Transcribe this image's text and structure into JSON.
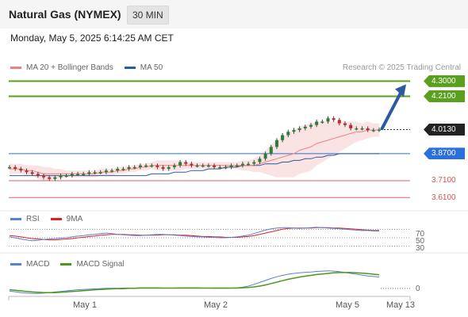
{
  "header": {
    "title": "Natural Gas (NYMEX)",
    "interval": "30 MIN",
    "datetime": "Monday, May 5, 2025 6:14:25 AM CET"
  },
  "legend_main": {
    "ma20_label": "MA 20 + Bollinger Bands",
    "ma50_label": "MA 50",
    "copyright": "Research © 2025 Trading Central"
  },
  "legend_rsi": {
    "rsi_label": "RSI",
    "ma_label": "9MA"
  },
  "legend_macd": {
    "macd_label": "MACD",
    "signal_label": "MACD Signal"
  },
  "colors": {
    "ma20": "#f08080",
    "ma50": "#2a5aa0",
    "resistance": "#5aa01e",
    "pivot": "#2a6fe0",
    "support": "#e06060",
    "current": "#222222",
    "arrow": "#2a5aa0",
    "rsi": "#5b7fd6",
    "rsi_ma": "#e02020",
    "macd": "#5b7fd6",
    "macd_signal": "#4a9a1a"
  },
  "levels": [
    {
      "name": "resistance-2",
      "value": 4.3,
      "label": "4.3000",
      "kind": "resistance"
    },
    {
      "name": "resistance-1",
      "value": 4.21,
      "label": "4.2100",
      "kind": "resistance"
    },
    {
      "name": "current-price",
      "value": 4.013,
      "label": "4.0130",
      "kind": "current"
    },
    {
      "name": "pivot",
      "value": 3.87,
      "label": "3.8700",
      "kind": "pivot"
    },
    {
      "name": "support-1",
      "value": 3.71,
      "label": "3.7100",
      "kind": "support"
    },
    {
      "name": "support-2",
      "value": 3.61,
      "label": "3.6100",
      "kind": "support"
    }
  ],
  "chart_data": {
    "type": "line",
    "title": "Natural Gas (NYMEX)",
    "interval": "30 MIN",
    "x_ticks": [
      "May 1",
      "May 2",
      "May 5",
      "May 13"
    ],
    "price_ylim": [
      3.55,
      4.33
    ],
    "price_close": [
      3.79,
      3.78,
      3.77,
      3.76,
      3.75,
      3.74,
      3.73,
      3.72,
      3.73,
      3.74,
      3.74,
      3.75,
      3.75,
      3.75,
      3.76,
      3.76,
      3.76,
      3.77,
      3.77,
      3.78,
      3.78,
      3.79,
      3.79,
      3.8,
      3.8,
      3.8,
      3.79,
      3.78,
      3.79,
      3.8,
      3.82,
      3.81,
      3.8,
      3.8,
      3.8,
      3.8,
      3.79,
      3.79,
      3.79,
      3.8,
      3.8,
      3.81,
      3.81,
      3.82,
      3.84,
      3.87,
      3.91,
      3.95,
      3.98,
      4.0,
      4.01,
      4.02,
      4.03,
      4.04,
      4.06,
      4.06,
      4.08,
      4.07,
      4.05,
      4.04,
      4.02,
      4.02,
      4.02,
      4.01,
      4.01,
      4.013
    ],
    "ma20": [
      3.78,
      3.78,
      3.78,
      3.77,
      3.77,
      3.76,
      3.75,
      3.75,
      3.75,
      3.75,
      3.75,
      3.75,
      3.75,
      3.75,
      3.75,
      3.75,
      3.76,
      3.76,
      3.76,
      3.77,
      3.77,
      3.78,
      3.78,
      3.79,
      3.79,
      3.8,
      3.8,
      3.8,
      3.8,
      3.8,
      3.8,
      3.8,
      3.8,
      3.8,
      3.8,
      3.8,
      3.8,
      3.8,
      3.8,
      3.8,
      3.8,
      3.8,
      3.8,
      3.8,
      3.81,
      3.82,
      3.83,
      3.84,
      3.85,
      3.86,
      3.87,
      3.89,
      3.9,
      3.91,
      3.93,
      3.94,
      3.95,
      3.96,
      3.97,
      3.98,
      3.99,
      4.0,
      4.0,
      4.01,
      4.01,
      4.01
    ],
    "bb_width": [
      0.03,
      0.03,
      0.03,
      0.03,
      0.03,
      0.04,
      0.04,
      0.04,
      0.03,
      0.03,
      0.02,
      0.02,
      0.02,
      0.02,
      0.02,
      0.02,
      0.02,
      0.02,
      0.02,
      0.02,
      0.02,
      0.02,
      0.02,
      0.02,
      0.02,
      0.02,
      0.03,
      0.03,
      0.03,
      0.03,
      0.03,
      0.02,
      0.02,
      0.02,
      0.02,
      0.02,
      0.02,
      0.02,
      0.02,
      0.02,
      0.02,
      0.03,
      0.03,
      0.04,
      0.05,
      0.07,
      0.09,
      0.11,
      0.12,
      0.13,
      0.14,
      0.14,
      0.14,
      0.14,
      0.13,
      0.12,
      0.11,
      0.1,
      0.09,
      0.08,
      0.07,
      0.06,
      0.05,
      0.05,
      0.04,
      0.04
    ],
    "ma50": [
      3.74,
      3.74,
      3.74,
      3.74,
      3.74,
      3.74,
      3.74,
      3.74,
      3.74,
      3.74,
      3.74,
      3.74,
      3.74,
      3.74,
      3.74,
      3.74,
      3.74,
      3.74,
      3.74,
      3.74,
      3.74,
      3.74,
      3.74,
      3.74,
      3.74,
      3.75,
      3.75,
      3.75,
      3.75,
      3.76,
      3.76,
      3.76,
      3.77,
      3.77,
      3.77,
      3.78,
      3.78,
      3.78,
      3.79,
      3.79,
      3.79,
      3.8,
      3.8,
      3.8,
      3.8,
      3.81,
      3.81,
      3.81,
      3.82,
      3.82,
      3.83,
      3.83,
      3.84,
      3.84,
      3.85,
      3.85,
      3.86,
      3.86,
      3.87,
      3.87,
      3.87,
      3.87,
      3.87,
      3.87,
      3.87,
      3.87
    ],
    "projection": {
      "from": 4.013,
      "to": 4.3
    },
    "rsi_ticks": [
      70,
      50,
      30
    ],
    "rsi": [
      52,
      50,
      47,
      45,
      43,
      44,
      46,
      47,
      48,
      49,
      50,
      52,
      54,
      55,
      57,
      58,
      60,
      61,
      60,
      58,
      57,
      56,
      55,
      55,
      56,
      57,
      58,
      58,
      57,
      56,
      55,
      54,
      53,
      52,
      52,
      51,
      51,
      50,
      50,
      51,
      52,
      54,
      56,
      60,
      64,
      68,
      71,
      73,
      74,
      74,
      73,
      72,
      73,
      74,
      75,
      74,
      73,
      72,
      71,
      70,
      69,
      68,
      67,
      67,
      66,
      66
    ],
    "rsi_ma": [
      55,
      54,
      52,
      50,
      48,
      47,
      46,
      45,
      45,
      46,
      47,
      48,
      50,
      51,
      53,
      54,
      56,
      57,
      58,
      58,
      58,
      57,
      57,
      56,
      56,
      56,
      56,
      57,
      57,
      57,
      56,
      56,
      55,
      54,
      53,
      53,
      52,
      52,
      51,
      51,
      51,
      52,
      53,
      55,
      58,
      61,
      64,
      67,
      70,
      72,
      73,
      73,
      73,
      73,
      74,
      74,
      74,
      73,
      73,
      72,
      71,
      70,
      69,
      68,
      67,
      67
    ],
    "macd_zero_tick": 0,
    "macd": [
      -0.01,
      -0.012,
      -0.015,
      -0.017,
      -0.018,
      -0.018,
      -0.017,
      -0.015,
      -0.013,
      -0.011,
      -0.009,
      -0.007,
      -0.005,
      -0.004,
      -0.003,
      -0.002,
      -0.001,
      0.0,
      0.0,
      0.0,
      0.001,
      0.001,
      0.001,
      0.002,
      0.002,
      0.002,
      0.002,
      0.001,
      0.001,
      0.001,
      0.002,
      0.002,
      0.002,
      0.002,
      0.001,
      0.001,
      0.0,
      0.0,
      0.0,
      0.001,
      0.002,
      0.004,
      0.008,
      0.014,
      0.021,
      0.028,
      0.035,
      0.041,
      0.046,
      0.05,
      0.053,
      0.055,
      0.057,
      0.058,
      0.06,
      0.061,
      0.062,
      0.061,
      0.059,
      0.056,
      0.053,
      0.05,
      0.047,
      0.044,
      0.042,
      0.04
    ],
    "macd_signal": [
      -0.005,
      -0.007,
      -0.009,
      -0.011,
      -0.013,
      -0.014,
      -0.015,
      -0.015,
      -0.015,
      -0.014,
      -0.013,
      -0.011,
      -0.01,
      -0.008,
      -0.007,
      -0.005,
      -0.004,
      -0.003,
      -0.002,
      -0.001,
      -0.001,
      0.0,
      0.0,
      0.001,
      0.001,
      0.001,
      0.001,
      0.001,
      0.001,
      0.001,
      0.001,
      0.001,
      0.001,
      0.001,
      0.001,
      0.001,
      0.001,
      0.001,
      0.001,
      0.001,
      0.001,
      0.002,
      0.003,
      0.005,
      0.008,
      0.012,
      0.017,
      0.022,
      0.027,
      0.032,
      0.036,
      0.04,
      0.043,
      0.046,
      0.049,
      0.051,
      0.053,
      0.055,
      0.056,
      0.056,
      0.056,
      0.055,
      0.054,
      0.052,
      0.05,
      0.048
    ]
  }
}
